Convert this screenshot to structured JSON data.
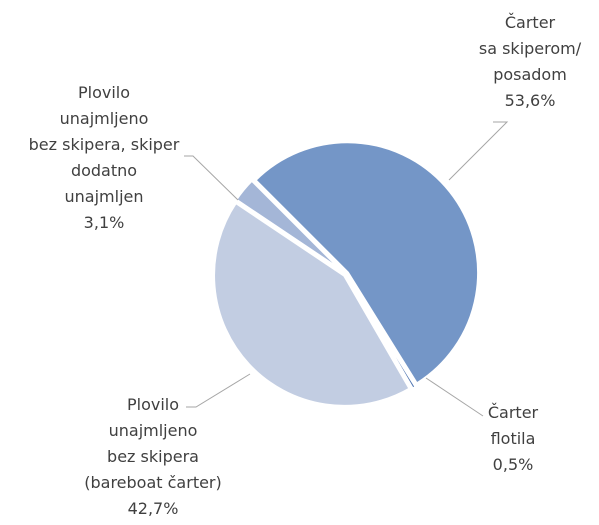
{
  "chart_data": {
    "type": "pie",
    "title": "",
    "legend": "none",
    "slices": [
      {
        "label_lines": [
          "Čarter",
          "sa skiperom/",
          "posadom"
        ],
        "value_label": "53,6%",
        "value": 53.6,
        "color": "#7496c7"
      },
      {
        "label_lines": [
          "Čarter",
          "flotila"
        ],
        "value_label": "0,5%",
        "value": 0.5,
        "color": "#4d73b0"
      },
      {
        "label_lines": [
          "Plovilo",
          "unajmljeno",
          "bez skipera",
          "(bareboat čarter)"
        ],
        "value_label": "42,7%",
        "value": 42.7,
        "color": "#c2cde2"
      },
      {
        "label_lines": [
          "Plovilo",
          "unajmljeno",
          "bez skipera, skiper",
          "dodatno",
          "unajmljen"
        ],
        "value_label": "3,1%",
        "value": 3.1,
        "color": "#a4b6d7"
      }
    ]
  }
}
